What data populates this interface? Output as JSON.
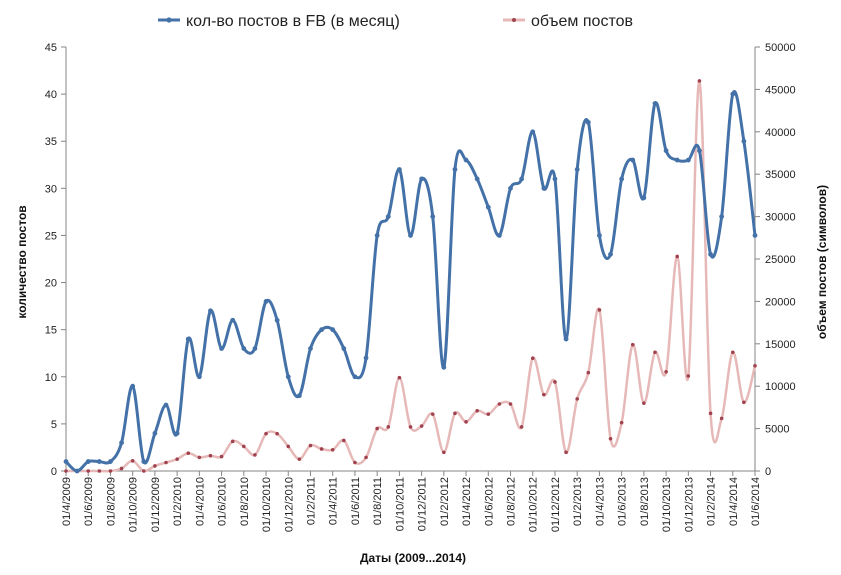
{
  "chart_data": {
    "type": "line",
    "xlabel": "Даты (2009...2014)",
    "ylabel_left": "количество постов",
    "ylabel_right": "объем постов (символов)",
    "y_left_range": [
      0,
      45
    ],
    "y_left_ticks": [
      "0",
      "5",
      "10",
      "15",
      "20",
      "25",
      "30",
      "35",
      "40",
      "45"
    ],
    "y_right_range": [
      0,
      50000
    ],
    "y_right_ticks": [
      "0",
      "5000",
      "10000",
      "15000",
      "20000",
      "25000",
      "30000",
      "35000",
      "40000",
      "45000",
      "50000"
    ],
    "x_tick_labels": [
      "01/4/2009",
      "01/6/2009",
      "01/8/2009",
      "01/10/2009",
      "01/12/2009",
      "01/2/2010",
      "01/4/2010",
      "01/6/2010",
      "01/8/2010",
      "01/10/2010",
      "01/12/2010",
      "01/2/2011",
      "01/4/2011",
      "01/6/2011",
      "01/8/2011",
      "01/10/2011",
      "01/12/2011",
      "01/2/2012",
      "01/4/2012",
      "01/6/2012",
      "01/8/2012",
      "01/10/2012",
      "01/12/2012",
      "01/2/2013",
      "01/4/2013",
      "01/6/2013",
      "01/8/2013",
      "01/10/2013",
      "01/12/2013",
      "01/2/2014",
      "01/4/2014",
      "01/6/2014"
    ],
    "x_range": [
      "2009-04",
      "2014-06"
    ],
    "grid": false,
    "legend_position": "top",
    "series": [
      {
        "name": "кол-во постов в FB (в месяц)",
        "axis": "left",
        "color": "#4472A8",
        "x": [
          "2009-04",
          "2009-05",
          "2009-06",
          "2009-07",
          "2009-08",
          "2009-09",
          "2009-10",
          "2009-11",
          "2009-12",
          "2010-01",
          "2010-02",
          "2010-03",
          "2010-04",
          "2010-05",
          "2010-06",
          "2010-07",
          "2010-08",
          "2010-09",
          "2010-10",
          "2010-11",
          "2010-12",
          "2011-01",
          "2011-02",
          "2011-03",
          "2011-04",
          "2011-05",
          "2011-06",
          "2011-07",
          "2011-08",
          "2011-09",
          "2011-10",
          "2011-11",
          "2011-12",
          "2012-01",
          "2012-02",
          "2012-03",
          "2012-04",
          "2012-05",
          "2012-06",
          "2012-07",
          "2012-08",
          "2012-09",
          "2012-10",
          "2012-11",
          "2012-12",
          "2013-01",
          "2013-02",
          "2013-03",
          "2013-04",
          "2013-05",
          "2013-06",
          "2013-07",
          "2013-08",
          "2013-09",
          "2013-10",
          "2013-11",
          "2013-12",
          "2014-01",
          "2014-02",
          "2014-03",
          "2014-04",
          "2014-05",
          "2014-06"
        ],
        "values": [
          1,
          0,
          1,
          1,
          1,
          3,
          9,
          1,
          4,
          7,
          4,
          14,
          10,
          17,
          13,
          16,
          13,
          13,
          18,
          16,
          10,
          8,
          13,
          15,
          15,
          13,
          10,
          12,
          25,
          27,
          32,
          25,
          31,
          27,
          11,
          32,
          33,
          31,
          28,
          25,
          30,
          31,
          36,
          30,
          31,
          14,
          32,
          37,
          25,
          23,
          31,
          33,
          29,
          39,
          34,
          33,
          33,
          34,
          23,
          27,
          40,
          35,
          25
        ]
      },
      {
        "name": "объем постов",
        "axis": "right",
        "color": "#E6B9B8",
        "marker_color": "#A0434E",
        "x": [
          "2009-04",
          "2009-05",
          "2009-06",
          "2009-07",
          "2009-08",
          "2009-09",
          "2009-10",
          "2009-11",
          "2009-12",
          "2010-01",
          "2010-02",
          "2010-03",
          "2010-04",
          "2010-05",
          "2010-06",
          "2010-07",
          "2010-08",
          "2010-09",
          "2010-10",
          "2010-11",
          "2010-12",
          "2011-01",
          "2011-02",
          "2011-03",
          "2011-04",
          "2011-05",
          "2011-06",
          "2011-07",
          "2011-08",
          "2011-09",
          "2011-10",
          "2011-11",
          "2011-12",
          "2012-01",
          "2012-02",
          "2012-03",
          "2012-04",
          "2012-05",
          "2012-06",
          "2012-07",
          "2012-08",
          "2012-09",
          "2012-10",
          "2012-11",
          "2012-12",
          "2013-01",
          "2013-02",
          "2013-03",
          "2013-04",
          "2013-05",
          "2013-06",
          "2013-07",
          "2013-08",
          "2013-09",
          "2013-10",
          "2013-11",
          "2013-12",
          "2014-01",
          "2014-02",
          "2014-03",
          "2014-04",
          "2014-05",
          "2014-06"
        ],
        "values": [
          0,
          0,
          0,
          0,
          0,
          300,
          1200,
          0,
          600,
          1000,
          1400,
          2100,
          1600,
          1800,
          1700,
          3500,
          2900,
          1900,
          4400,
          4400,
          2900,
          1400,
          3000,
          2600,
          2500,
          3600,
          1000,
          1600,
          5000,
          5200,
          11000,
          5200,
          5300,
          6700,
          2200,
          6800,
          5800,
          7100,
          6700,
          7900,
          7900,
          5200,
          13300,
          9000,
          10500,
          2200,
          8500,
          11600,
          19000,
          3800,
          5700,
          14900,
          8000,
          14000,
          11700,
          25300,
          11200,
          46000,
          6800,
          6200,
          14000,
          8100,
          12400
        ]
      }
    ]
  }
}
